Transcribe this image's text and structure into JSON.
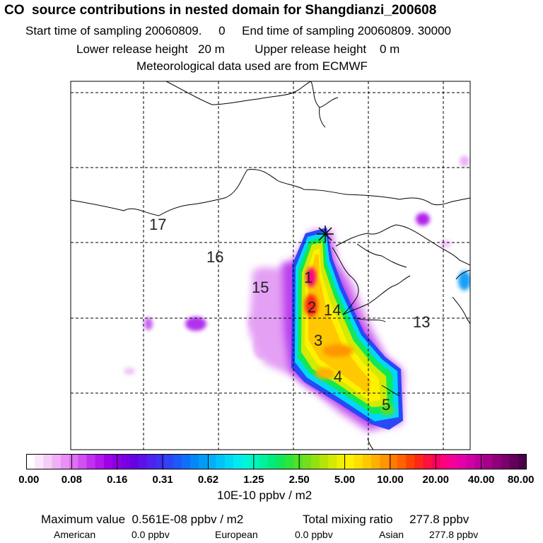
{
  "header": {
    "title": "CO  source contributions in nested domain for Shangdianzi_200608",
    "line2": "Start time of sampling 20060809.     0     End time of sampling 20060809. 30000",
    "line3": "Lower release height   20 m         Upper release height    0 m",
    "line4": "Meteorological data used are from ECMWF"
  },
  "map": {
    "day_labels": [
      "17",
      "16",
      "15",
      "14",
      "13",
      "1",
      "2",
      "3",
      "4",
      "5"
    ],
    "receptor_icon": "asterisk-icon"
  },
  "colorbar": {
    "tick_labels": [
      "0.00",
      "0.08",
      "0.16",
      "0.31",
      "0.62",
      "1.25",
      "2.50",
      "5.00",
      "10.00",
      "20.00",
      "40.00",
      "80.00"
    ],
    "colors": [
      "#ffffff",
      "#fbe6fb",
      "#f6ccf8",
      "#f0b0f6",
      "#e890f5",
      "#dd70f3",
      "#d050f0",
      "#c030ee",
      "#b018ec",
      "#a000ea",
      "#8c00e6",
      "#7a00e4",
      "#6800e4",
      "#5c10ea",
      "#4e22f0",
      "#4030f4",
      "#2e44f6",
      "#1e58f8",
      "#106ef8",
      "#0088f8",
      "#009cf8",
      "#00b0f8",
      "#00c4f8",
      "#00d8f6",
      "#00eaf0",
      "#00f4d8",
      "#00f4bc",
      "#00f09c",
      "#00ec7c",
      "#10e858",
      "#30e43c",
      "#52e028",
      "#72de1c",
      "#94e010",
      "#b4e408",
      "#d4ea00",
      "#eef000",
      "#fff000",
      "#ffde00",
      "#ffc800",
      "#ffb000",
      "#ff9600",
      "#ff7c00",
      "#ff6200",
      "#ff4400",
      "#ff2818",
      "#ff1040",
      "#ff0060",
      "#ff0080",
      "#f4009c",
      "#e400a8",
      "#d000a8",
      "#ba0098",
      "#a40088",
      "#90007a",
      "#7a006c",
      "#64005c",
      "#4c004a"
    ],
    "units": "10E-10 ppbv / m2"
  },
  "footer": {
    "maximum": "Maximum value  0.561E-08 ppbv / m2",
    "total": "Total mixing ratio     277.8 ppbv",
    "american_label": "American",
    "american_value": "0.0 ppbv",
    "european_label": "European",
    "european_value": "0.0 ppbv",
    "asian_label": "Asian",
    "asian_value": "277.8 ppbv"
  }
}
